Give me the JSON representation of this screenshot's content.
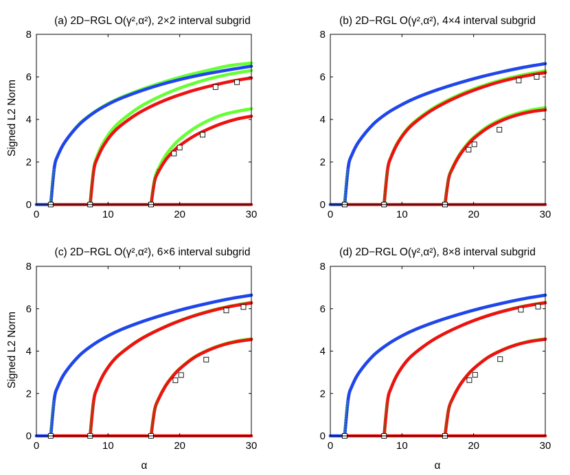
{
  "colors": {
    "green": "#66ff33",
    "blue": "#2244ee",
    "red": "#ee1111",
    "branch_dots_blue": "#2a8a8a",
    "branch_dots_red": "#8a5a10",
    "marker_fill": "#ffffff"
  },
  "chart_data": [
    {
      "type": "line",
      "title": "(a) 2D−RGL O(γ²,α²), 2×2 interval subgrid",
      "xlabel": "",
      "ylabel": "Signed L2 Norm",
      "xlim": [
        0,
        30
      ],
      "ylim": [
        0,
        8
      ],
      "xticks": [
        "0",
        "10",
        "20",
        "30"
      ],
      "yticks": [
        "0",
        "2",
        "4",
        "6",
        "8"
      ],
      "bifurcation_points": [
        2,
        7.5,
        16
      ],
      "series": [
        {
          "name": "branch1-green",
          "color": "green",
          "x": [
            2,
            2.5,
            3,
            4,
            6,
            8,
            10,
            12,
            15,
            18,
            21,
            24,
            27,
            30
          ],
          "y": [
            0,
            1.73,
            2.31,
            2.95,
            3.79,
            4.33,
            4.74,
            5.06,
            5.45,
            5.78,
            6.07,
            6.31,
            6.53,
            6.65
          ]
        },
        {
          "name": "branch1-blue",
          "color": "blue",
          "x": [
            2,
            2.5,
            3,
            4,
            6,
            8,
            10,
            12,
            15,
            18,
            21,
            24,
            27,
            30
          ],
          "y": [
            0,
            1.73,
            2.31,
            2.95,
            3.77,
            4.31,
            4.71,
            5.02,
            5.39,
            5.7,
            5.95,
            6.16,
            6.34,
            6.5
          ]
        },
        {
          "name": "branch2-green",
          "color": "green",
          "x": [
            7.5,
            8,
            8.5,
            9.5,
            11,
            13,
            15,
            18,
            21,
            24,
            27,
            30
          ],
          "y": [
            0,
            1.68,
            2.29,
            3.0,
            3.68,
            4.25,
            4.7,
            5.2,
            5.59,
            5.9,
            6.13,
            6.3
          ]
        },
        {
          "name": "branch2-red",
          "color": "red",
          "x": [
            7.5,
            8,
            8.5,
            9.5,
            11,
            13,
            15,
            18,
            21,
            24,
            27,
            30
          ],
          "y": [
            0,
            1.6,
            2.17,
            2.84,
            3.48,
            4.02,
            4.44,
            4.91,
            5.27,
            5.55,
            5.78,
            5.95
          ]
        },
        {
          "name": "branch3-green",
          "color": "green",
          "x": [
            16,
            16.5,
            17,
            18,
            19,
            20,
            22,
            24,
            26,
            28,
            30
          ],
          "y": [
            0,
            1.2,
            1.66,
            2.29,
            2.73,
            3.07,
            3.58,
            3.95,
            4.22,
            4.38,
            4.5
          ]
        },
        {
          "name": "branch3-red",
          "color": "red",
          "x": [
            16,
            16.5,
            17,
            18,
            19,
            20,
            22,
            24,
            26,
            28,
            30
          ],
          "y": [
            0,
            1.1,
            1.52,
            2.08,
            2.47,
            2.77,
            3.22,
            3.55,
            3.82,
            4.02,
            4.15
          ]
        },
        {
          "name": "trivial-blue",
          "color": "blue",
          "x": [
            0,
            2
          ],
          "y": [
            0,
            0
          ]
        },
        {
          "name": "trivial-red",
          "color": "red",
          "x": [
            2,
            30
          ],
          "y": [
            0,
            0
          ]
        }
      ],
      "markers": {
        "x": [
          2,
          7.5,
          16,
          25,
          28,
          19.2,
          20,
          23.2
        ],
        "y": [
          0,
          0,
          0,
          5.52,
          5.75,
          2.4,
          2.68,
          3.28
        ]
      }
    },
    {
      "type": "line",
      "title": "(b) 2D−RGL O(γ²,α²), 4×4 interval subgrid",
      "xlabel": "",
      "ylabel": "",
      "xlim": [
        0,
        30
      ],
      "ylim": [
        0,
        8
      ],
      "xticks": [
        "0",
        "10",
        "20",
        "30"
      ],
      "yticks": [
        "0",
        "2",
        "4",
        "6",
        "8"
      ],
      "bifurcation_points": [
        2,
        7.5,
        16
      ],
      "series": [
        {
          "name": "branch1-green",
          "color": "green",
          "x": [
            2,
            2.5,
            3,
            4,
            6,
            8,
            10,
            12,
            15,
            18,
            21,
            24,
            27,
            30
          ],
          "y": [
            0,
            1.75,
            2.33,
            2.97,
            3.78,
            4.31,
            4.7,
            5.02,
            5.4,
            5.72,
            6.0,
            6.24,
            6.45,
            6.62
          ]
        },
        {
          "name": "branch1-blue",
          "color": "blue",
          "x": [
            2,
            2.5,
            3,
            4,
            6,
            8,
            10,
            12,
            15,
            18,
            21,
            24,
            27,
            30
          ],
          "y": [
            0,
            1.75,
            2.33,
            2.97,
            3.78,
            4.31,
            4.7,
            5.02,
            5.4,
            5.72,
            6.0,
            6.24,
            6.45,
            6.62
          ]
        },
        {
          "name": "branch2-green",
          "color": "green",
          "x": [
            7.5,
            8,
            8.5,
            9.5,
            11,
            13,
            15,
            18,
            21,
            24,
            27,
            30
          ],
          "y": [
            0,
            1.68,
            2.27,
            2.98,
            3.66,
            4.22,
            4.66,
            5.16,
            5.55,
            5.86,
            6.1,
            6.28
          ]
        },
        {
          "name": "branch2-red",
          "color": "red",
          "x": [
            7.5,
            8,
            8.5,
            9.5,
            11,
            13,
            15,
            18,
            21,
            24,
            27,
            30
          ],
          "y": [
            0,
            1.66,
            2.24,
            2.94,
            3.61,
            4.17,
            4.6,
            5.1,
            5.49,
            5.8,
            6.03,
            6.2
          ]
        },
        {
          "name": "branch3-green",
          "color": "green",
          "x": [
            16,
            16.5,
            17,
            18,
            19,
            20,
            22,
            24,
            26,
            28,
            30
          ],
          "y": [
            0,
            1.22,
            1.7,
            2.34,
            2.8,
            3.16,
            3.68,
            4.03,
            4.27,
            4.44,
            4.55
          ]
        },
        {
          "name": "branch3-red",
          "color": "red",
          "x": [
            16,
            16.5,
            17,
            18,
            19,
            20,
            22,
            24,
            26,
            28,
            30
          ],
          "y": [
            0,
            1.2,
            1.66,
            2.29,
            2.74,
            3.1,
            3.61,
            3.96,
            4.2,
            4.36,
            4.45
          ]
        },
        {
          "name": "trivial-blue",
          "color": "blue",
          "x": [
            0,
            2
          ],
          "y": [
            0,
            0
          ]
        },
        {
          "name": "trivial-red",
          "color": "red",
          "x": [
            2,
            30
          ],
          "y": [
            0,
            0
          ]
        }
      ],
      "markers": {
        "x": [
          2,
          7.5,
          16,
          26.3,
          28.8,
          19.3,
          20.1,
          23.6
        ],
        "y": [
          0,
          0,
          0,
          5.83,
          6.0,
          2.58,
          2.83,
          3.52
        ]
      }
    },
    {
      "type": "line",
      "title": "(c) 2D−RGL O(γ²,α²), 6×6 interval subgrid",
      "xlabel": "α",
      "ylabel": "Signed L2 Norm",
      "xlim": [
        0,
        30
      ],
      "ylim": [
        0,
        8
      ],
      "xticks": [
        "0",
        "10",
        "20",
        "30"
      ],
      "yticks": [
        "0",
        "2",
        "4",
        "6",
        "8"
      ],
      "bifurcation_points": [
        2,
        7.5,
        16
      ],
      "series": [
        {
          "name": "branch1-green",
          "color": "green",
          "x": [
            2,
            2.5,
            3,
            4,
            6,
            8,
            10,
            12,
            15,
            18,
            21,
            24,
            27,
            30
          ],
          "y": [
            0,
            1.75,
            2.33,
            2.98,
            3.79,
            4.32,
            4.72,
            5.04,
            5.42,
            5.74,
            6.02,
            6.26,
            6.47,
            6.64
          ]
        },
        {
          "name": "branch1-blue",
          "color": "blue",
          "x": [
            2,
            2.5,
            3,
            4,
            6,
            8,
            10,
            12,
            15,
            18,
            21,
            24,
            27,
            30
          ],
          "y": [
            0,
            1.75,
            2.33,
            2.98,
            3.79,
            4.32,
            4.72,
            5.04,
            5.42,
            5.74,
            6.02,
            6.26,
            6.47,
            6.64
          ]
        },
        {
          "name": "branch2-green",
          "color": "green",
          "x": [
            7.5,
            8,
            8.5,
            9.5,
            11,
            13,
            15,
            18,
            21,
            24,
            27,
            30
          ],
          "y": [
            0,
            1.68,
            2.27,
            2.98,
            3.66,
            4.22,
            4.66,
            5.16,
            5.56,
            5.88,
            6.12,
            6.3
          ]
        },
        {
          "name": "branch2-red",
          "color": "red",
          "x": [
            7.5,
            8,
            8.5,
            9.5,
            11,
            13,
            15,
            18,
            21,
            24,
            27,
            30
          ],
          "y": [
            0,
            1.67,
            2.26,
            2.97,
            3.65,
            4.21,
            4.65,
            5.15,
            5.55,
            5.86,
            6.1,
            6.27
          ]
        },
        {
          "name": "branch3-green",
          "color": "green",
          "x": [
            16,
            16.5,
            17,
            18,
            19,
            20,
            22,
            24,
            26,
            28,
            30
          ],
          "y": [
            0,
            1.23,
            1.72,
            2.36,
            2.82,
            3.18,
            3.71,
            4.06,
            4.31,
            4.48,
            4.58
          ]
        },
        {
          "name": "branch3-red",
          "color": "red",
          "x": [
            16,
            16.5,
            17,
            18,
            19,
            20,
            22,
            24,
            26,
            28,
            30
          ],
          "y": [
            0,
            1.22,
            1.7,
            2.34,
            2.8,
            3.16,
            3.69,
            4.04,
            4.29,
            4.45,
            4.55
          ]
        },
        {
          "name": "trivial-blue",
          "color": "blue",
          "x": [
            0,
            2
          ],
          "y": [
            0,
            0
          ]
        },
        {
          "name": "trivial-red",
          "color": "red",
          "x": [
            2,
            30
          ],
          "y": [
            0,
            0
          ]
        }
      ],
      "markers": {
        "x": [
          2,
          7.5,
          16,
          26.5,
          28.9,
          19.4,
          20.2,
          23.7
        ],
        "y": [
          0,
          0,
          0,
          5.92,
          6.08,
          2.62,
          2.87,
          3.6
        ]
      }
    },
    {
      "type": "line",
      "title": "(d) 2D−RGL O(γ²,α²), 8×8 interval subgrid",
      "xlabel": "α",
      "ylabel": "",
      "xlim": [
        0,
        30
      ],
      "ylim": [
        0,
        8
      ],
      "xticks": [
        "0",
        "10",
        "20",
        "30"
      ],
      "yticks": [
        "0",
        "2",
        "4",
        "6",
        "8"
      ],
      "bifurcation_points": [
        2,
        7.5,
        16
      ],
      "series": [
        {
          "name": "branch1-green",
          "color": "green",
          "x": [
            2,
            2.5,
            3,
            4,
            6,
            8,
            10,
            12,
            15,
            18,
            21,
            24,
            27,
            30
          ],
          "y": [
            0,
            1.75,
            2.33,
            2.98,
            3.79,
            4.32,
            4.72,
            5.04,
            5.42,
            5.74,
            6.02,
            6.26,
            6.47,
            6.64
          ]
        },
        {
          "name": "branch1-blue",
          "color": "blue",
          "x": [
            2,
            2.5,
            3,
            4,
            6,
            8,
            10,
            12,
            15,
            18,
            21,
            24,
            27,
            30
          ],
          "y": [
            0,
            1.75,
            2.33,
            2.98,
            3.79,
            4.32,
            4.72,
            5.04,
            5.42,
            5.74,
            6.02,
            6.26,
            6.47,
            6.64
          ]
        },
        {
          "name": "branch2-green",
          "color": "green",
          "x": [
            7.5,
            8,
            8.5,
            9.5,
            11,
            13,
            15,
            18,
            21,
            24,
            27,
            30
          ],
          "y": [
            0,
            1.68,
            2.27,
            2.98,
            3.66,
            4.22,
            4.66,
            5.16,
            5.56,
            5.88,
            6.12,
            6.3
          ]
        },
        {
          "name": "branch2-red",
          "color": "red",
          "x": [
            7.5,
            8,
            8.5,
            9.5,
            11,
            13,
            15,
            18,
            21,
            24,
            27,
            30
          ],
          "y": [
            0,
            1.68,
            2.27,
            2.98,
            3.66,
            4.22,
            4.66,
            5.16,
            5.56,
            5.87,
            6.11,
            6.28
          ]
        },
        {
          "name": "branch3-green",
          "color": "green",
          "x": [
            16,
            16.5,
            17,
            18,
            19,
            20,
            22,
            24,
            26,
            28,
            30
          ],
          "y": [
            0,
            1.23,
            1.72,
            2.36,
            2.82,
            3.18,
            3.71,
            4.06,
            4.31,
            4.48,
            4.58
          ]
        },
        {
          "name": "branch3-red",
          "color": "red",
          "x": [
            16,
            16.5,
            17,
            18,
            19,
            20,
            22,
            24,
            26,
            28,
            30
          ],
          "y": [
            0,
            1.23,
            1.71,
            2.35,
            2.81,
            3.17,
            3.7,
            4.05,
            4.3,
            4.46,
            4.56
          ]
        },
        {
          "name": "trivial-blue",
          "color": "blue",
          "x": [
            0,
            2
          ],
          "y": [
            0,
            0
          ]
        },
        {
          "name": "trivial-red",
          "color": "red",
          "x": [
            2,
            30
          ],
          "y": [
            0,
            0
          ]
        }
      ],
      "markers": {
        "x": [
          2,
          7.5,
          16,
          26.6,
          29.0,
          19.4,
          20.2,
          23.7
        ],
        "y": [
          0,
          0,
          0,
          5.95,
          6.1,
          2.63,
          2.88,
          3.62
        ]
      }
    }
  ]
}
